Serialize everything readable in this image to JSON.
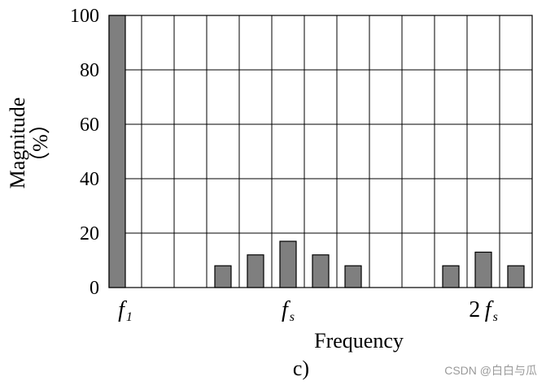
{
  "chart_data": {
    "type": "bar",
    "ylabel": "Magnitude",
    "ylabel_unit": "（%）",
    "xlabel": "Frequency",
    "caption": "c)",
    "ylim": [
      0,
      100
    ],
    "y_ticks": [
      0,
      20,
      40,
      60,
      80,
      100
    ],
    "grid": true,
    "slot_count": 13,
    "bars": [
      {
        "slot": 0,
        "value": 100,
        "color": "#7f7f7f"
      },
      {
        "slot": 3,
        "value": 8,
        "color": "#7f7f7f"
      },
      {
        "slot": 4,
        "value": 12,
        "color": "#7f7f7f"
      },
      {
        "slot": 5,
        "value": 17,
        "color": "#7f7f7f"
      },
      {
        "slot": 6,
        "value": 12,
        "color": "#7f7f7f"
      },
      {
        "slot": 7,
        "value": 8,
        "color": "#7f7f7f"
      },
      {
        "slot": 10,
        "value": 8,
        "color": "#7f7f7f"
      },
      {
        "slot": 11,
        "value": 13,
        "color": "#7f7f7f"
      },
      {
        "slot": 12,
        "value": 8,
        "color": "#7f7f7f"
      }
    ],
    "category_labels": [
      {
        "slot": 0,
        "coef": "",
        "main": "f",
        "sub": "1"
      },
      {
        "slot": 5,
        "coef": "",
        "main": "f",
        "sub": "s"
      },
      {
        "slot": 11,
        "coef": "2",
        "main": "f",
        "sub": "s"
      }
    ]
  },
  "watermark": "CSDN @白白与瓜"
}
